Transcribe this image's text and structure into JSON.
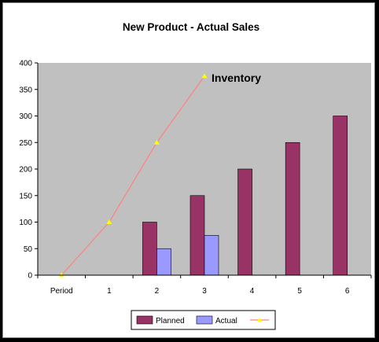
{
  "chart_data": {
    "type": "bar",
    "title": "New Product - Actual Sales",
    "categories": [
      "Period",
      "1",
      "2",
      "3",
      "4",
      "5",
      "6"
    ],
    "ylim": [
      0,
      400
    ],
    "yticks": [
      0,
      50,
      100,
      150,
      200,
      250,
      300,
      350,
      400
    ],
    "grid": false,
    "legend_position": "bottom",
    "series": [
      {
        "name": "Planned",
        "kind": "bar",
        "color": "#993366",
        "values": [
          null,
          null,
          100,
          150,
          200,
          250,
          300
        ]
      },
      {
        "name": "Actual",
        "kind": "bar",
        "color": "#9999ff",
        "values": [
          null,
          null,
          50,
          75,
          null,
          null,
          null
        ]
      },
      {
        "name": "",
        "kind": "line",
        "color": "#ff8080",
        "marker_color": "#ffff00",
        "values": [
          0,
          100,
          250,
          375,
          null,
          null,
          null
        ]
      }
    ],
    "annotations": [
      {
        "text": "Inventory"
      }
    ]
  }
}
